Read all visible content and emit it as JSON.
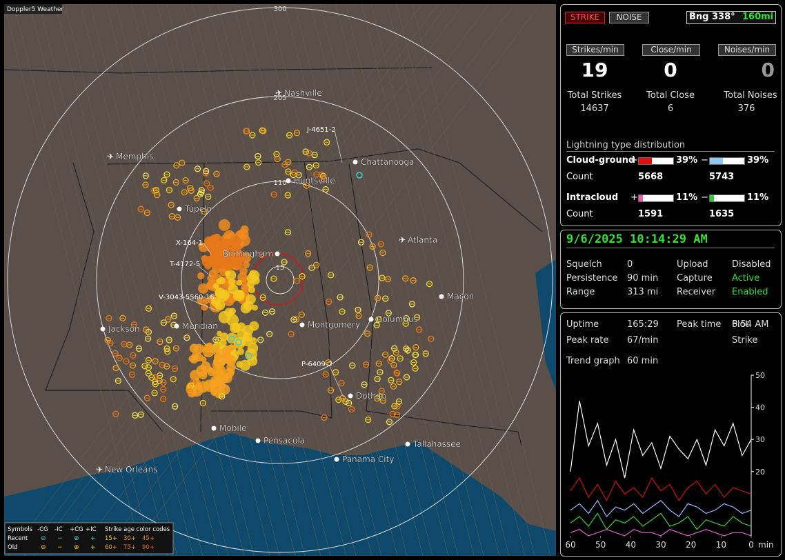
{
  "map": {
    "title": "Doppler5 Weather",
    "range_labels": [
      "300",
      "205",
      "110",
      "15"
    ],
    "cities": [
      "Nashville",
      "Memphis",
      "Chattanooga",
      "Huntsville",
      "Tupelo",
      "Atlanta",
      "Birmingham",
      "Macon",
      "Jackson",
      "Meridian",
      "Montgomery",
      "Columbus",
      "Dothan",
      "Mobile",
      "Pensacola",
      "Tallahassee",
      "Panama City",
      "New Orleans"
    ],
    "storms": [
      "J-4651-2",
      "X-164-1",
      "T-4172-5",
      "V-3043-5560-16",
      "P-6409-2"
    ],
    "legend": {
      "header": [
        "Symbols",
        "-CG",
        "-IC",
        "+CG",
        "+IC"
      ],
      "age_title": "Strike age color codes",
      "rows": [
        "Recent",
        "Old"
      ],
      "ages": [
        "15+",
        "30+",
        "45+",
        "60+",
        "75+",
        "90+"
      ]
    }
  },
  "status": {
    "strike": "STRIKE",
    "noise": "NOISE",
    "bearing": "Bng 338°",
    "distance": "160mi",
    "rates": [
      {
        "label": "Strikes/min",
        "value": "19",
        "total_label": "Total Strikes",
        "total": "14637"
      },
      {
        "label": "Close/min",
        "value": "0",
        "total_label": "Total Close",
        "total": "6"
      },
      {
        "label": "Noises/min",
        "value": "0",
        "total_label": "Total Noises",
        "total": "376"
      }
    ],
    "distribution_title": "Lightning type distribution",
    "types": [
      {
        "name": "Cloud-ground",
        "plus": "+",
        "plus_pct": "39%",
        "minus": "−",
        "minus_pct": "39%",
        "count_label": "Count",
        "plus_count": "5668",
        "minus_count": "5743"
      },
      {
        "name": "Intracloud",
        "plus": "+",
        "plus_pct": "11%",
        "minus": "−",
        "minus_pct": "11%",
        "count_label": "Count",
        "plus_count": "1591",
        "minus_count": "1635"
      }
    ]
  },
  "settings": {
    "datetime": "9/6/2025 10:14:29 AM",
    "rows": [
      [
        "Squelch",
        "0",
        "Upload",
        "Disabled"
      ],
      [
        "Persistence",
        "90 min",
        "Capture",
        "Active"
      ],
      [
        "Range",
        "313 mi",
        "Receiver",
        "Enabled"
      ]
    ]
  },
  "stats": {
    "rows": [
      [
        "Uptime",
        "165:29",
        "Peak time",
        "6:54 AM",
        "Plot"
      ],
      [
        "Peak rate",
        "67/min",
        "",
        "",
        "Strike"
      ]
    ],
    "trend_label": "Trend graph",
    "trend_value": "60 min"
  },
  "chart_data": {
    "type": "line",
    "x_unit": "min",
    "xlim": [
      60,
      0
    ],
    "xticks": [
      60,
      50,
      40,
      30,
      20,
      10,
      0
    ],
    "ylim": [
      0,
      50
    ],
    "yticks": [
      20,
      30,
      40,
      50
    ],
    "x": [
      60,
      57,
      54,
      51,
      48,
      45,
      42,
      39,
      36,
      33,
      30,
      27,
      24,
      21,
      18,
      15,
      12,
      9,
      6,
      3,
      0
    ],
    "series": [
      {
        "color": "#ffffff",
        "values": [
          20,
          42,
          28,
          35,
          22,
          30,
          18,
          33,
          25,
          29,
          21,
          31,
          27,
          24,
          30,
          22,
          33,
          28,
          35,
          25,
          30
        ]
      },
      {
        "color": "#d01010",
        "values": [
          14,
          18,
          12,
          16,
          11,
          17,
          13,
          15,
          12,
          18,
          14,
          16,
          11,
          15,
          17,
          13,
          16,
          12,
          15,
          14,
          13
        ]
      },
      {
        "color": "#9ab8ff",
        "values": [
          8,
          10,
          7,
          11,
          6,
          9,
          8,
          10,
          7,
          9,
          11,
          8,
          6,
          10,
          9,
          7,
          8,
          10,
          9,
          7,
          8
        ]
      },
      {
        "color": "#30d030",
        "values": [
          4,
          6,
          3,
          7,
          2,
          5,
          4,
          6,
          3,
          5,
          7,
          3,
          4,
          6,
          2,
          5,
          4,
          3,
          6,
          4,
          3
        ]
      },
      {
        "color": "#e060d0",
        "values": [
          1,
          2,
          0,
          1,
          2,
          1,
          0,
          2,
          1,
          1,
          0,
          2,
          1,
          0,
          1,
          2,
          1,
          0,
          1,
          1,
          0
        ]
      }
    ]
  }
}
